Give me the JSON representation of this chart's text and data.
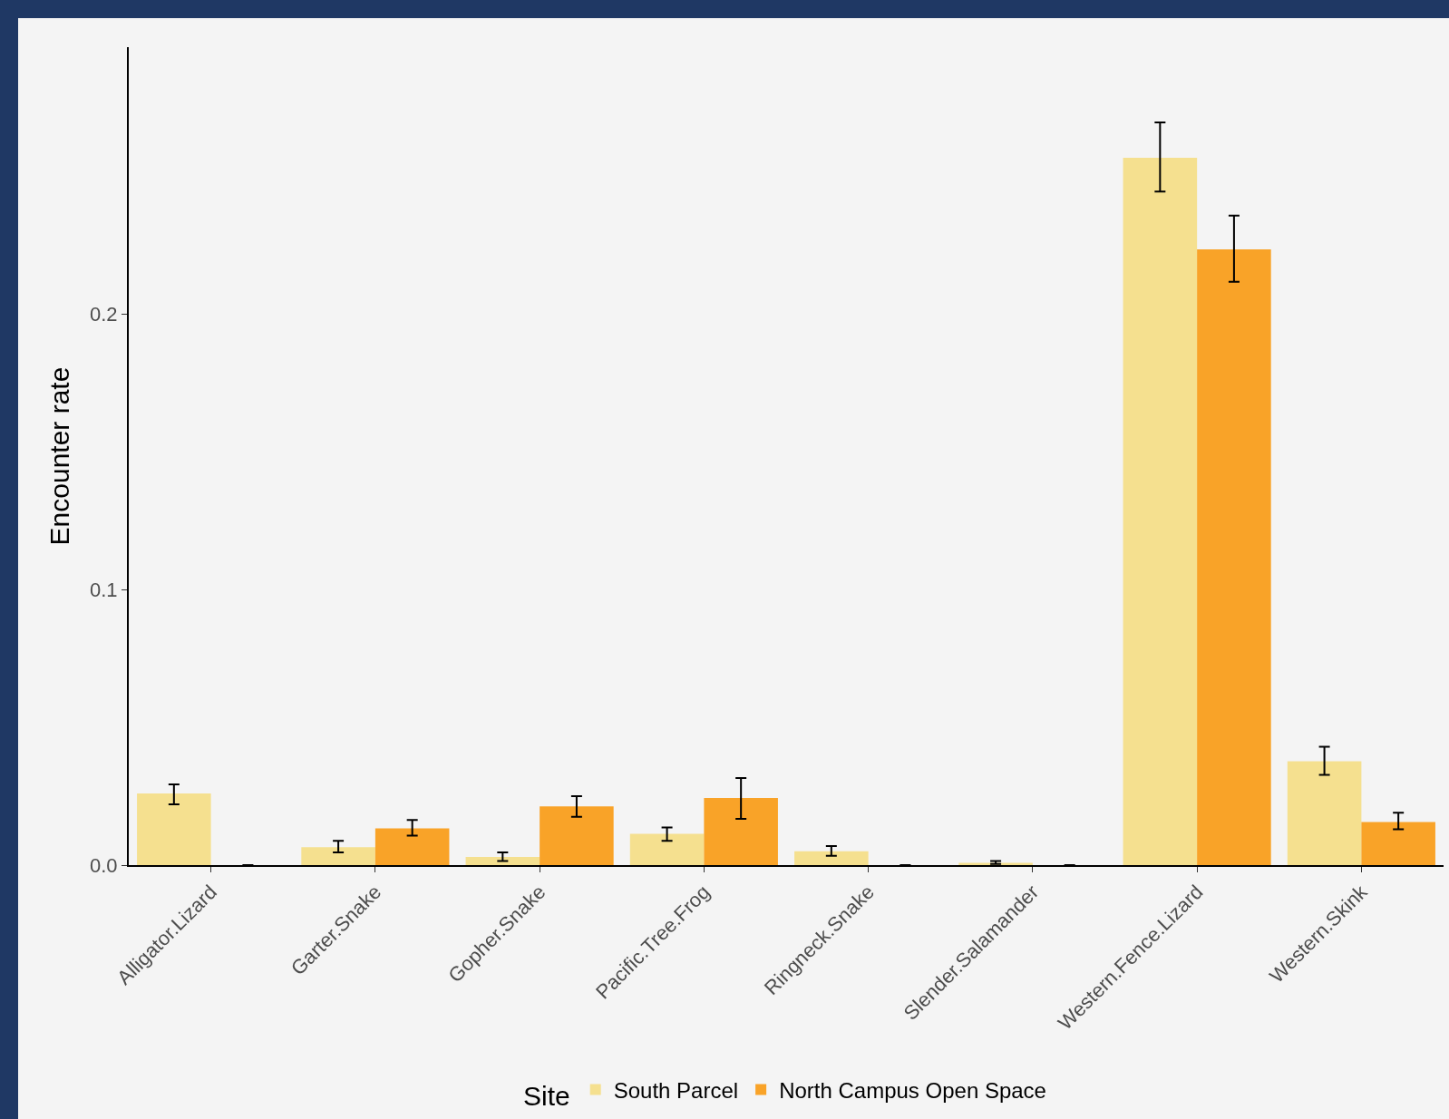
{
  "chart_data": {
    "type": "bar",
    "ylabel": "Encounter rate",
    "legend_title": "Site",
    "legend": "bottom",
    "grid": false,
    "categories": [
      "Alligator.Lizard",
      "Garter.Snake",
      "Gopher.Snake",
      "Pacific.Tree.Frog",
      "Ringneck.Snake",
      "Slender.Salamander",
      "Western.Fence.Lizard",
      "Western.Skink"
    ],
    "ylim": [
      0,
      0.297
    ],
    "yticks": [
      {
        "value": 0,
        "label": "0.0"
      },
      0.1,
      0.2
    ],
    "series": [
      {
        "name": "South Parcel",
        "color": "#f5e08f",
        "values": [
          0.026,
          0.0065,
          0.003,
          0.0114,
          0.005,
          0.0008,
          0.2568,
          0.0377
        ],
        "errors": [
          [
            0.0221,
            0.0293
          ],
          [
            0.0046,
            0.0088
          ],
          [
            0.0015,
            0.0046
          ],
          [
            0.0088,
            0.0137
          ],
          [
            0.0034,
            0.0069
          ],
          [
            0.0004,
            0.0015
          ],
          [
            0.2446,
            0.2697
          ],
          [
            0.0328,
            0.043
          ]
        ]
      },
      {
        "name": "North Campus Open Space",
        "color": "#f9a328",
        "values": [
          0,
          0.0133,
          0.0213,
          0.0244,
          0,
          0,
          0.2236,
          0.0156
        ],
        "errors": [
          null,
          [
            0.0107,
            0.0164
          ],
          [
            0.0175,
            0.025
          ],
          [
            0.0168,
            0.0316
          ],
          null,
          null,
          [
            0.2118,
            0.2358
          ],
          [
            0.013,
            0.019
          ]
        ]
      }
    ]
  }
}
